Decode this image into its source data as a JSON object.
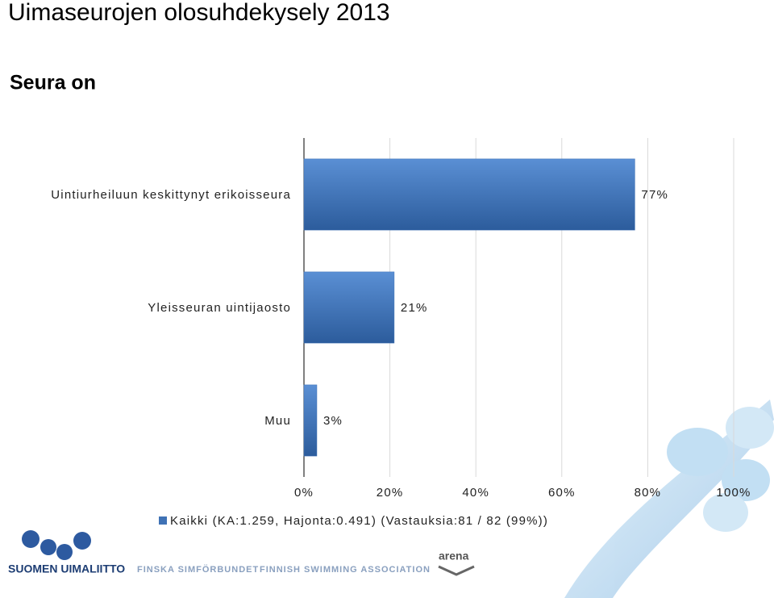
{
  "chart_data": {
    "type": "bar",
    "orientation": "horizontal",
    "title": "Uimaseurojen olosuhdekysely 2013",
    "subtitle": "Seura on",
    "categories": [
      "Uintiurheiluun keskittynyt erikoisseura",
      "Yleisseuran uintijaosto",
      "Muu"
    ],
    "series": [
      {
        "name": "Kaikki (KA:1.259, Hajonta:0.491) (Vastauksia:81 / 82 (99%))",
        "color": "#3f72b5",
        "values": [
          77,
          21,
          3
        ],
        "value_labels": [
          "77%",
          "21%",
          "3%"
        ]
      }
    ],
    "xlim": [
      0,
      100
    ],
    "xticks": [
      {
        "value": 0,
        "label": "0%"
      },
      {
        "value": 20,
        "label": "20%"
      },
      {
        "value": 40,
        "label": "40%"
      },
      {
        "value": 60,
        "label": "60%"
      },
      {
        "value": 80,
        "label": "80%"
      },
      {
        "value": 100,
        "label": "100%"
      }
    ],
    "grid": true
  },
  "footer": {
    "brand": "SUOMEN UIMALIITTO",
    "swedish": "FINSKA SIMFÖRBUNDET",
    "english": "FINNISH SWIMMING ASSOCIATION",
    "sponsor": "arena"
  }
}
